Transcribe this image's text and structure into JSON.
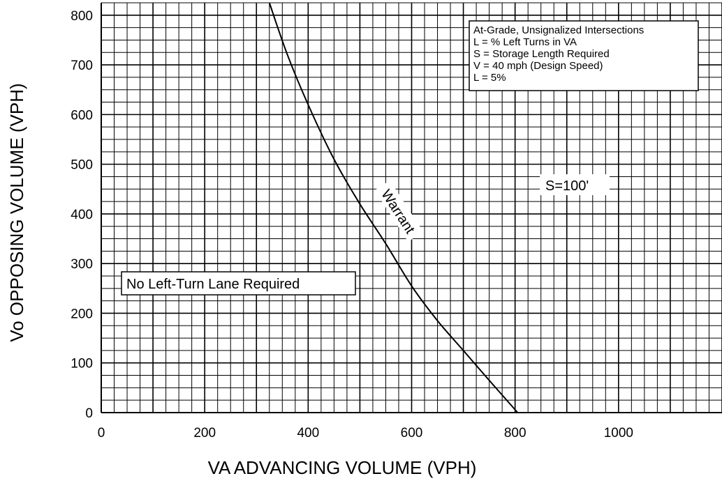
{
  "chart_data": {
    "type": "line",
    "title": "",
    "xlabel": "VA ADVANCING VOLUME (VPH)",
    "ylabel": "Vo OPPOSING VOLUME (VPH)",
    "xlim": [
      0,
      1200
    ],
    "ylim": [
      0,
      825
    ],
    "x_ticks": [
      0,
      200,
      400,
      600,
      800,
      1000
    ],
    "y_ticks": [
      0,
      100,
      200,
      300,
      400,
      500,
      600,
      700,
      800
    ],
    "grid": true,
    "legend_position": "top-right",
    "legend_lines": [
      "At-Grade, Unsignalized Intersections",
      "L = % Left Turns in VA",
      "S = Storage Length Required",
      "V = 40 mph (Design Speed)",
      "L = 5%"
    ],
    "series": [
      {
        "name": "Warrant",
        "x": [
          325,
          360,
          400,
          450,
          500,
          550,
          600,
          650,
          700,
          750,
          805
        ],
        "y": [
          825,
          720,
          620,
          510,
          420,
          340,
          255,
          185,
          125,
          65,
          0
        ]
      }
    ],
    "annotations": [
      {
        "text": "No Left-Turn Lane Required"
      },
      {
        "text": "S=100'"
      }
    ]
  }
}
